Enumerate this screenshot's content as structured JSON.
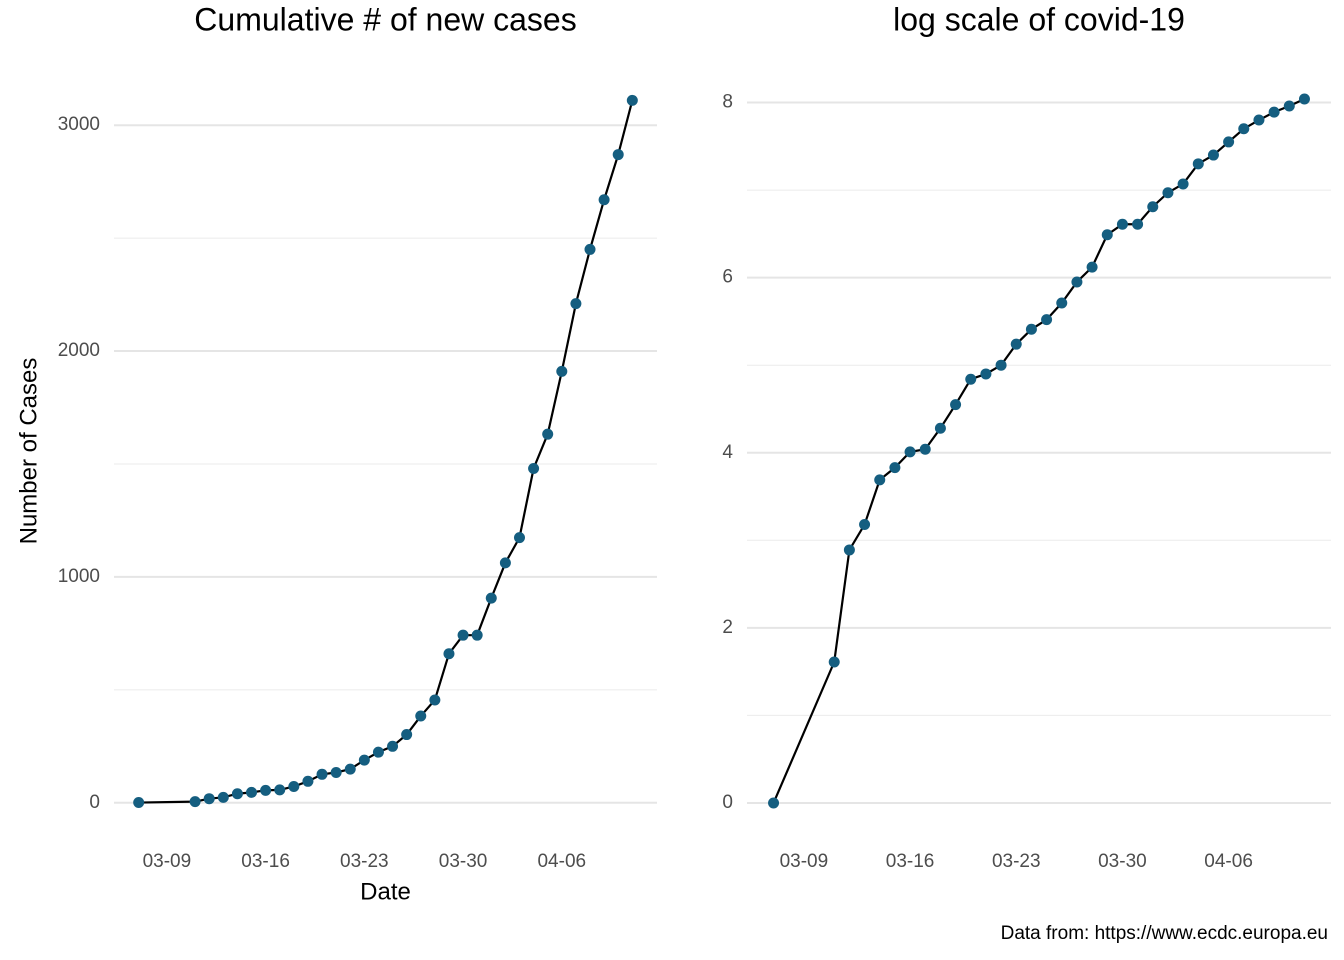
{
  "chart_data": [
    {
      "type": "line",
      "title": "Cumulative # of new cases",
      "xlabel": "Date",
      "ylabel": "Number of Cases",
      "x": [
        "03-07",
        "03-11",
        "03-12",
        "03-13",
        "03-14",
        "03-15",
        "03-16",
        "03-17",
        "03-18",
        "03-19",
        "03-20",
        "03-21",
        "03-22",
        "03-23",
        "03-24",
        "03-25",
        "03-26",
        "03-27",
        "03-28",
        "03-29",
        "03-30",
        "03-31",
        "04-01",
        "04-02",
        "04-03",
        "04-04",
        "04-05",
        "04-06",
        "04-07",
        "04-08",
        "04-09",
        "04-10",
        "04-11"
      ],
      "values": [
        1,
        5,
        18,
        24,
        40,
        46,
        55,
        57,
        72,
        95,
        126,
        134,
        149,
        189,
        224,
        250,
        302,
        384,
        455,
        660,
        742,
        742,
        906,
        1062,
        1174,
        1480,
        1632,
        1910,
        2210,
        2450,
        2670,
        2870,
        3110
      ],
      "color": "#155e80",
      "line_color": "#000000",
      "ylim": [
        -156,
        3271
      ],
      "yticks": [
        0,
        1000,
        2000,
        3000
      ],
      "minor_yticks": [
        500,
        1500,
        2500
      ],
      "xticks": [
        "03-09",
        "03-16",
        "03-23",
        "03-30",
        "04-06"
      ],
      "grid": true
    },
    {
      "type": "line",
      "title": "log scale of covid-19",
      "x": [
        "03-07",
        "03-11",
        "03-12",
        "03-13",
        "03-14",
        "03-15",
        "03-16",
        "03-17",
        "03-18",
        "03-19",
        "03-20",
        "03-21",
        "03-22",
        "03-23",
        "03-24",
        "03-25",
        "03-26",
        "03-27",
        "03-28",
        "03-29",
        "03-30",
        "03-31",
        "04-01",
        "04-02",
        "04-03",
        "04-04",
        "04-05",
        "04-06",
        "04-07",
        "04-08",
        "04-09",
        "04-10",
        "04-11"
      ],
      "values": [
        0,
        1.61,
        2.89,
        3.18,
        3.69,
        3.83,
        4.01,
        4.04,
        4.28,
        4.55,
        4.84,
        4.9,
        5.0,
        5.24,
        5.41,
        5.52,
        5.71,
        5.95,
        6.12,
        6.49,
        6.61,
        6.61,
        6.81,
        6.97,
        7.07,
        7.3,
        7.4,
        7.55,
        7.7,
        7.8,
        7.89,
        7.96,
        8.04
      ],
      "color": "#155e80",
      "line_color": "#000000",
      "ylim": [
        -0.4,
        8.44
      ],
      "yticks": [
        0,
        2,
        4,
        6,
        8
      ],
      "minor_yticks": [
        1,
        3,
        5,
        7
      ],
      "xticks": [
        "03-09",
        "03-16",
        "03-23",
        "03-30",
        "04-06"
      ],
      "grid": true
    }
  ],
  "caption": "Data from: https://www.ecdc.europa.eu"
}
